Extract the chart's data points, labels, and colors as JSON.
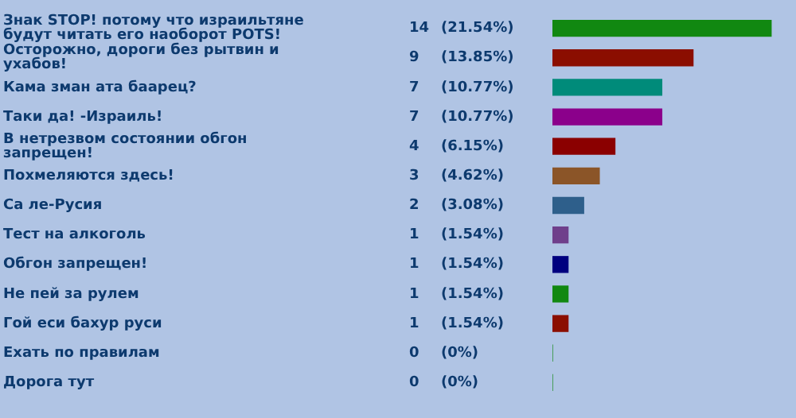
{
  "chart_data": {
    "type": "bar",
    "orientation": "horizontal",
    "categories": [
      "Знак STOP! потому что израильтяне будут читать его наоборот POTS!",
      "Осторожно, дороги без рытвин и ухабов!",
      "Кама зман ата баарец?",
      "Таки да! -Израиль!",
      "В нетрезвом состоянии обгон запрещен!",
      "Похмеляются здесь!",
      "Са ле-Русия",
      "Тест на алкоголь",
      "Обгон запрещен!",
      "Не пей за рулем",
      "Гой еси бахур руси",
      "Ехать по правилам",
      "Дорога тут"
    ],
    "values": [
      14,
      9,
      7,
      7,
      4,
      3,
      2,
      1,
      1,
      1,
      1,
      0,
      0
    ],
    "colors": [
      "#118811",
      "#8b0e00",
      "#008b7a",
      "#8b008b",
      "#8b0000",
      "#8b5528",
      "#2e5f8b",
      "#6f3f8b",
      "#00007f",
      "#118811",
      "#8b0e00",
      "#118811",
      "#118811"
    ],
    "value_labels": [
      "14 (21.54%)",
      "9 (13.85%)",
      "7 (10.77%)",
      "7 (10.77%)",
      "4 (6.15%)",
      "3 (4.62%)",
      "2 (3.08%)",
      "1 (1.54%)",
      "1 (1.54%)",
      "1 (1.54%)",
      "1 (1.54%)",
      "0 (0%)",
      "0 (0%)"
    ],
    "legend": false
  }
}
